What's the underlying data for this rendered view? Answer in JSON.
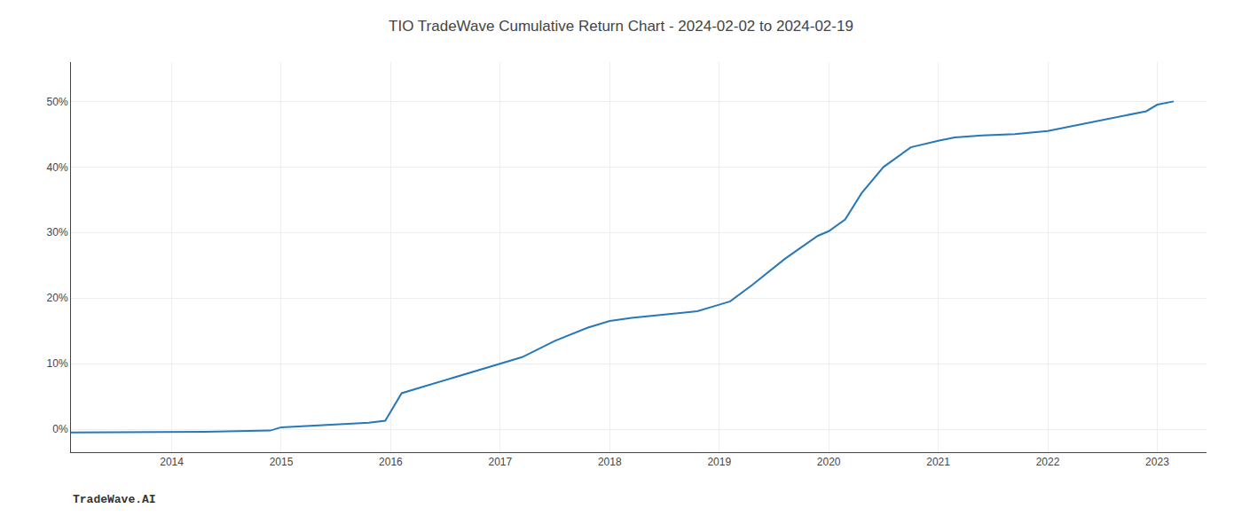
{
  "chart_data": {
    "type": "line",
    "title": "TIO TradeWave Cumulative Return Chart - 2024-02-02 to 2024-02-19",
    "annotations": [
      "TradeWave.AI"
    ],
    "color": "#2878b8",
    "x": [
      2013.08,
      2013.6,
      2014.0,
      2014.3,
      2014.6,
      2014.9,
      2015.0,
      2015.2,
      2015.5,
      2015.8,
      2015.95,
      2016.1,
      2016.3,
      2016.6,
      2016.9,
      2017.0,
      2017.2,
      2017.5,
      2017.8,
      2018.0,
      2018.2,
      2018.5,
      2018.8,
      2019.0,
      2019.1,
      2019.3,
      2019.6,
      2019.9,
      2020.0,
      2020.15,
      2020.3,
      2020.5,
      2020.75,
      2021.0,
      2021.15,
      2021.4,
      2021.7,
      2022.0,
      2022.3,
      2022.6,
      2022.9,
      2023.0,
      2023.15
    ],
    "values": [
      -0.5,
      -0.5,
      -0.5,
      -0.4,
      -0.3,
      -0.2,
      0.3,
      0.5,
      0.8,
      1.0,
      1.3,
      5.5,
      6.5,
      8.0,
      9.5,
      10.0,
      11.0,
      13.5,
      15.5,
      16.5,
      17.0,
      17.5,
      18.0,
      19.0,
      19.5,
      22.0,
      26.0,
      29.5,
      30.2,
      32.0,
      36.0,
      40.0,
      43.0,
      44.0,
      44.5,
      44.8,
      45.0,
      45.5,
      46.5,
      47.5,
      48.5,
      49.5,
      50.0
    ],
    "xlim": [
      2013.08,
      2023.45
    ],
    "ylim": [
      -3.5,
      56
    ],
    "xticks": [
      2014,
      2015,
      2016,
      2017,
      2018,
      2019,
      2020,
      2021,
      2022,
      2023
    ],
    "yticks": [
      {
        "value": 0,
        "label": "0%"
      },
      {
        "value": 10,
        "label": "10%"
      },
      {
        "value": 20,
        "label": "20%"
      },
      {
        "value": 30,
        "label": "30%"
      },
      {
        "value": 40,
        "label": "40%"
      },
      {
        "value": 50,
        "label": "50%"
      }
    ],
    "grid": true
  }
}
